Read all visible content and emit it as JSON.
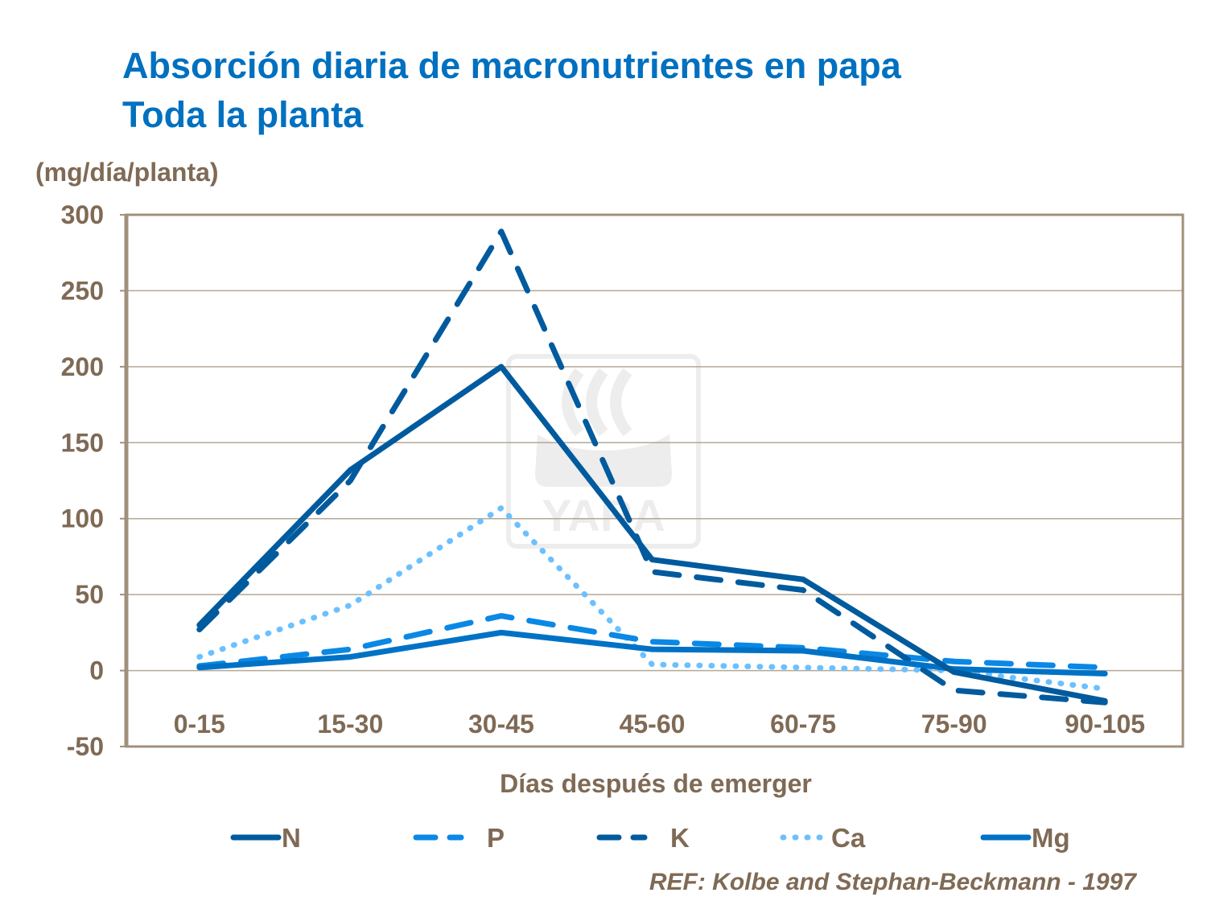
{
  "chart_data": {
    "type": "line",
    "title": "Absorción diaria de macronutrientes en papa",
    "subtitle": "Toda la planta",
    "ylabel": "(mg/día/planta)",
    "xlabel": "Días después de emerger",
    "categories": [
      "0-15",
      "15-30",
      "30-45",
      "45-60",
      "60-75",
      "75-90",
      "90-105"
    ],
    "ylim": [
      -50,
      300
    ],
    "yticks": [
      300,
      250,
      200,
      150,
      100,
      50,
      0,
      -50
    ],
    "grid": true,
    "legend_position": "bottom",
    "series": [
      {
        "name": "N",
        "style": "solid",
        "color": "#005a9e",
        "values": [
          30,
          132,
          200,
          73,
          60,
          -1,
          -20
        ]
      },
      {
        "name": "P",
        "style": "dash",
        "color": "#0a88e6",
        "values": [
          3,
          14,
          36,
          19,
          15,
          6,
          2
        ]
      },
      {
        "name": "K",
        "style": "dash",
        "color": "#005a9e",
        "values": [
          27,
          125,
          289,
          65,
          53,
          -13,
          -21
        ]
      },
      {
        "name": "Ca",
        "style": "dot",
        "color": "#6cc0ff",
        "values": [
          9,
          43,
          107,
          4,
          2,
          0,
          -12
        ]
      },
      {
        "name": "Mg",
        "style": "solid",
        "color": "#0072c6",
        "values": [
          2,
          9,
          25,
          14,
          13,
          1,
          -2
        ]
      }
    ],
    "source": "REF: Kolbe and Stephan-Beckmann  - 1997",
    "watermark": "YARA"
  }
}
